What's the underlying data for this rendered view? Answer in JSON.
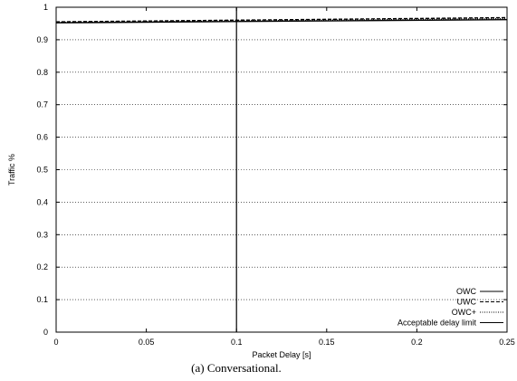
{
  "chart_data": {
    "type": "line",
    "caption": "(a) Conversational.",
    "xlabel": "Packet Delay [s]",
    "ylabel": "Traffic %",
    "xlim": [
      0,
      0.25
    ],
    "ylim": [
      0,
      1
    ],
    "x_ticks": [
      0,
      0.05,
      0.1,
      0.15,
      0.2,
      0.25
    ],
    "x_tick_labels": [
      "0",
      "0.05",
      "0.1",
      "0.15",
      "0.2",
      "0.25"
    ],
    "y_ticks": [
      0,
      0.1,
      0.2,
      0.3,
      0.4,
      0.5,
      0.6,
      0.7,
      0.8,
      0.9,
      1
    ],
    "y_tick_labels": [
      "0",
      "0.1",
      "0.2",
      "0.3",
      "0.4",
      "0.5",
      "0.6",
      "0.7",
      "0.8",
      "0.9",
      "1"
    ],
    "grid": "horizontal",
    "legend_position": "bottom-right",
    "series": [
      {
        "name": "OWC",
        "style": "solid",
        "color": "#000000",
        "x": [
          0,
          0.25
        ],
        "y": [
          0.952,
          0.962
        ]
      },
      {
        "name": "UWC",
        "style": "dashed",
        "color": "#000000",
        "x": [
          0,
          0.25
        ],
        "y": [
          0.955,
          0.968
        ]
      },
      {
        "name": "OWC+",
        "style": "dotted",
        "color": "#000000",
        "x": [
          0,
          0.25
        ],
        "y": [
          0.953,
          0.965
        ]
      },
      {
        "name": "Acceptable delay limit",
        "style": "solid",
        "color": "#000000",
        "x": [
          0.1,
          0.1
        ],
        "y": [
          0,
          1
        ]
      }
    ]
  }
}
